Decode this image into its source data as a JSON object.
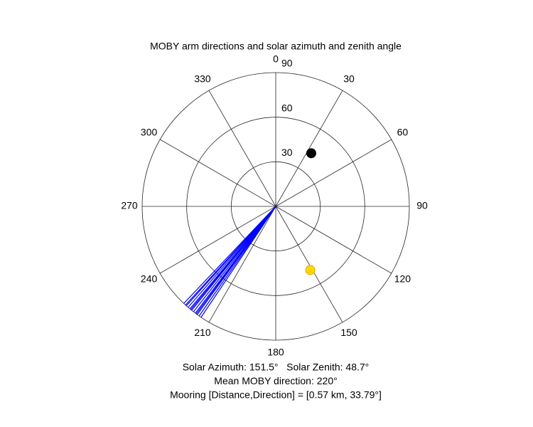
{
  "chart_data": {
    "type": "polar",
    "title": "MOBY arm directions and solar azimuth and zenith angle",
    "thetaticks": [
      0,
      30,
      60,
      90,
      120,
      150,
      180,
      210,
      240,
      270,
      300,
      330
    ],
    "rlim": [
      0,
      90
    ],
    "rticks": [
      30,
      60,
      90
    ],
    "series": [
      {
        "marker": "line",
        "color": "#0000ff",
        "theta": [
          214,
          215,
          216,
          216.5,
          217,
          218,
          219,
          219.5,
          220,
          221,
          222,
          222.5,
          223.5
        ],
        "r": [
          90,
          90,
          90,
          90,
          90,
          90,
          90,
          90,
          90,
          90,
          90,
          90,
          90
        ]
      },
      {
        "marker": "dot",
        "color": "#000000",
        "theta": [
          33.79
        ],
        "r": [
          43
        ]
      },
      {
        "marker": "dot",
        "color": "#ffd700",
        "theta": [
          151.5
        ],
        "r": [
          48.7
        ]
      }
    ],
    "annotations": [
      "Solar Azimuth: 151.5°   Solar Zenith: 48.7°",
      "Mean MOBY direction: 220°",
      "Mooring [Distance,Direction] = [0.57 km, 33.79°]"
    ]
  }
}
